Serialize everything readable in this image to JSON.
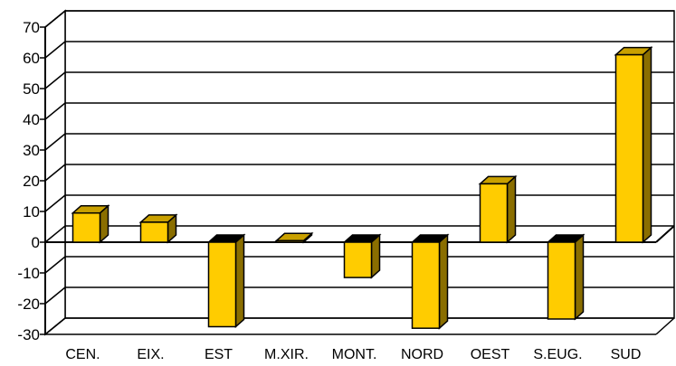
{
  "chart_data": {
    "type": "bar",
    "style": "3d-column",
    "title": "",
    "xlabel": "",
    "ylabel": "",
    "categories": [
      "CEN.",
      "EIX.",
      "EST",
      "M.XIR.",
      "MONT.",
      "NORD",
      "OEST",
      "S.EUG.",
      "SUD"
    ],
    "values": [
      9.5,
      6.5,
      -27.5,
      0.5,
      -11.5,
      -28,
      19,
      -25,
      61
    ],
    "ylim": [
      -30,
      70
    ],
    "yticks": [
      "-30",
      "-20",
      "-10",
      "0",
      "10",
      "20",
      "30",
      "40",
      "50",
      "60",
      "70"
    ],
    "grid": true,
    "legend": "none",
    "colors": {
      "bar_front": "#ffcc00",
      "bar_top": "#c9a000",
      "bar_side": "#8a6e00",
      "bar_outline": "#000000",
      "grid": "#000000",
      "background": "#ffffff"
    }
  }
}
